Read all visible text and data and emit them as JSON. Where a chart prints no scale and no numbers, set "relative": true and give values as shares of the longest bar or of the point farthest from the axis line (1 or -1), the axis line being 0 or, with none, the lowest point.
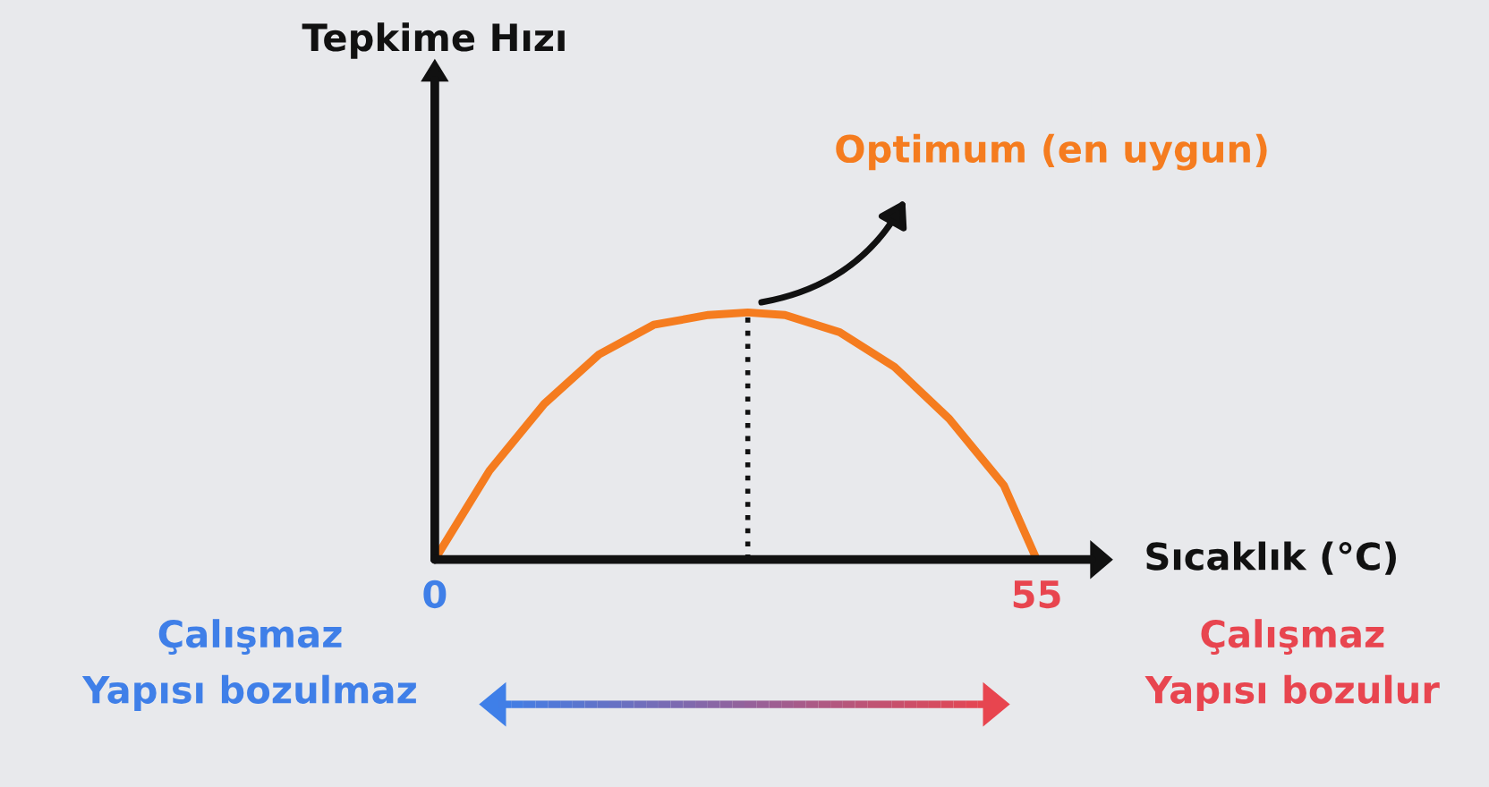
{
  "chart_data": {
    "type": "line",
    "relative": true,
    "xlabel": "Sıcaklık (°C)",
    "x": [
      0,
      5,
      10,
      15,
      20,
      25,
      28.6,
      32,
      37,
      42,
      47,
      52,
      55
    ],
    "series": [
      {
        "color": "#f57c1f",
        "values": [
          0,
          0.36,
          0.63,
          0.83,
          0.95,
          0.99,
          1,
          0.99,
          0.92,
          0.78,
          0.57,
          0.3,
          0
        ]
      }
    ],
    "xlim": [
      0,
      60
    ],
    "xticks": [
      0,
      55
    ],
    "grid": false,
    "legend": false,
    "marker": "none",
    "line_style": "solid",
    "ref_lines": [
      {
        "axis": "x",
        "value": 28.6,
        "label": null,
        "color": "#111111",
        "line_style": "dotted"
      }
    ],
    "annotations": [
      "Tepkime Hızı",
      "Optimum (en uygun)",
      "Çalışmaz\nYapısı bozulmaz",
      "Çalışmaz\nYapısı bozulur"
    ]
  }
}
